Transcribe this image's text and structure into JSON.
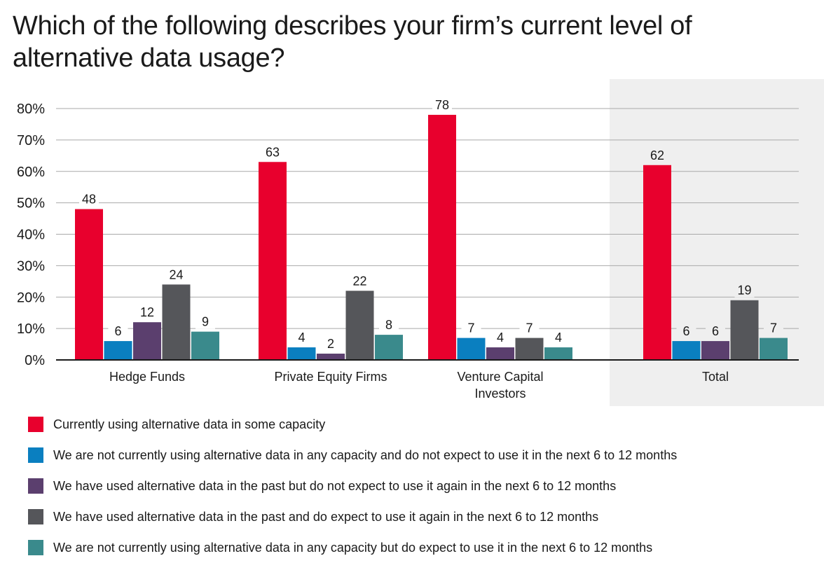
{
  "title": "Which of the following describes your firm’s current level of alternative data usage?",
  "chart_data": {
    "type": "bar",
    "categories": [
      "Hedge Funds",
      "Private Equity Firms",
      "Venture Capital Investors",
      "Total"
    ],
    "category_lines": [
      [
        "Hedge Funds"
      ],
      [
        "Private Equity Firms"
      ],
      [
        "Venture Capital",
        "Investors"
      ],
      [
        "Total"
      ]
    ],
    "highlighted_category": "Total",
    "series": [
      {
        "name": "Currently using alternative data in some capacity",
        "color": "#e8002d",
        "values": [
          48,
          63,
          78,
          62
        ]
      },
      {
        "name": "We are not currently using alternative data in any capacity and do not expect to use it in the next 6 to 12 months",
        "color": "#0a7fc0",
        "values": [
          6,
          4,
          7,
          6
        ]
      },
      {
        "name": "We have used alternative data in the past but do not expect to use it again in the next 6 to 12 months",
        "color": "#5b3f6e",
        "values": [
          12,
          2,
          4,
          6
        ]
      },
      {
        "name": "We have used alternative data in the past and do expect to use it again in the next 6 to 12 months",
        "color": "#55565a",
        "values": [
          24,
          22,
          7,
          19
        ]
      },
      {
        "name": "We are not currently using alternative data in any capacity but do expect to use it in the next 6 to 12 months",
        "color": "#3a8a8c",
        "values": [
          9,
          8,
          4,
          7
        ]
      }
    ],
    "yticks": [
      "0%",
      "10%",
      "20%",
      "30%",
      "40%",
      "50%",
      "60%",
      "70%",
      "80%"
    ],
    "ylim": [
      0,
      80
    ],
    "grid": true,
    "legend_position": "bottom",
    "highlight_color": "#efefef"
  }
}
